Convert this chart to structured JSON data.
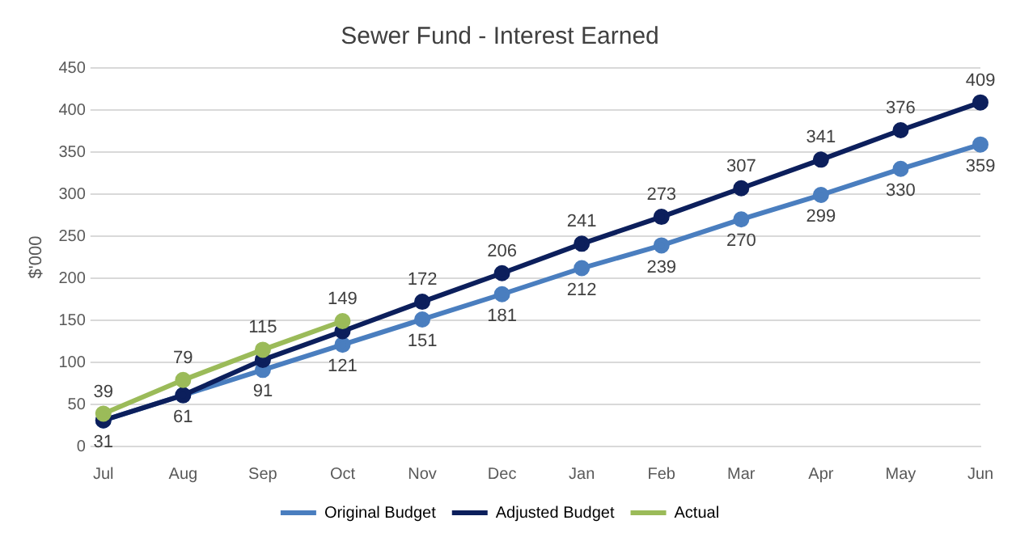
{
  "chart_data": {
    "type": "line",
    "title": "Sewer Fund - Interest Earned",
    "ylabel": "$'000",
    "categories": [
      "Jul",
      "Aug",
      "Sep",
      "Oct",
      "Nov",
      "Dec",
      "Jan",
      "Feb",
      "Mar",
      "Apr",
      "May",
      "Jun"
    ],
    "series": [
      {
        "name": "Original Budget",
        "color": "#4a7ebf",
        "values": [
          31,
          61,
          91,
          121,
          151,
          181,
          212,
          239,
          270,
          299,
          330,
          359
        ],
        "value_labels": [
          "31",
          "61",
          "91",
          "121",
          "151",
          "181",
          "212",
          "239",
          "270",
          "299",
          "330",
          "359"
        ]
      },
      {
        "name": "Adjusted Budget",
        "color": "#0c1f5c",
        "values": [
          31,
          61,
          103,
          137,
          172,
          206,
          241,
          273,
          307,
          341,
          376,
          409
        ],
        "value_labels": [
          null,
          null,
          null,
          null,
          "172",
          "206",
          "241",
          "273",
          "307",
          "341",
          "376",
          "409"
        ]
      },
      {
        "name": "Actual",
        "color": "#9bbb59",
        "values": [
          39,
          79,
          115,
          149,
          null,
          null,
          null,
          null,
          null,
          null,
          null,
          null
        ],
        "value_labels": [
          "39",
          "79",
          "115",
          "149",
          null,
          null,
          null,
          null,
          null,
          null,
          null,
          null
        ]
      }
    ],
    "ylim": [
      0,
      450
    ],
    "yticks": [
      0,
      50,
      100,
      150,
      200,
      250,
      300,
      350,
      400,
      450
    ],
    "grid": "y",
    "legend": "bottom",
    "marker": "circle",
    "line_style": "solid"
  }
}
